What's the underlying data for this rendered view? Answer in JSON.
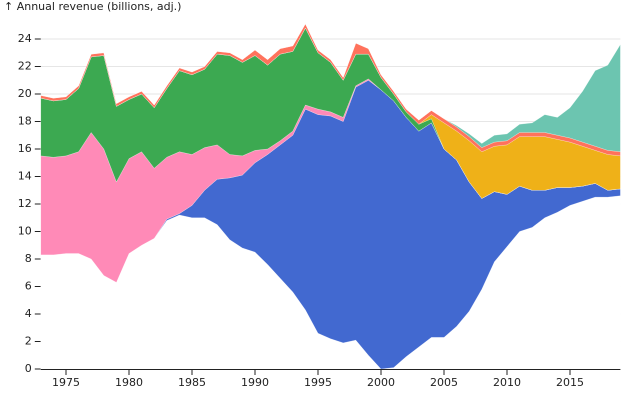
{
  "chart_data": {
    "type": "stacked-area",
    "y_label": "↑ Annual revenue (billions, adj.)",
    "x": [
      1973,
      1974,
      1975,
      1976,
      1977,
      1978,
      1979,
      1980,
      1981,
      1982,
      1983,
      1984,
      1985,
      1986,
      1987,
      1988,
      1989,
      1990,
      1991,
      1992,
      1993,
      1994,
      1995,
      1996,
      1997,
      1998,
      1999,
      2000,
      2001,
      2002,
      2003,
      2004,
      2005,
      2006,
      2007,
      2008,
      2009,
      2010,
      2011,
      2012,
      2013,
      2014,
      2015,
      2016,
      2017,
      2018,
      2019
    ],
    "series": [
      {
        "color": "#ffffff",
        "values": [
          8.3,
          8.3,
          8.4,
          8.4,
          8.0,
          6.8,
          6.3,
          8.4,
          9.0,
          9.5,
          10.8,
          11.2,
          11.0,
          11.0,
          10.5,
          9.4,
          8.8,
          8.5,
          7.6,
          6.6,
          5.6,
          4.3,
          2.6,
          2.2,
          1.9,
          2.1,
          1.0,
          0.0,
          0.1,
          0.9,
          1.6,
          2.3,
          2.3,
          3.1,
          4.2,
          5.8,
          7.8,
          8.9,
          10.0,
          10.3,
          11.0,
          11.4,
          11.9,
          12.2,
          12.5,
          12.5,
          12.6
        ]
      },
      {
        "color": "#4269d0",
        "values": [
          0,
          0,
          0,
          0,
          0,
          0,
          0,
          0,
          0,
          0,
          0.1,
          0.1,
          0.9,
          2.0,
          3.3,
          4.5,
          5.3,
          6.5,
          8.0,
          9.7,
          11.4,
          14.6,
          15.9,
          16.2,
          16.1,
          18.4,
          20.0,
          20.3,
          19.4,
          17.4,
          15.7,
          15.6,
          13.7,
          12.1,
          9.4,
          6.6,
          5.1,
          3.8,
          3.3,
          2.7,
          2.0,
          1.8,
          1.3,
          1.1,
          1.0,
          0.5,
          0.5
        ]
      },
      {
        "color": "#ff8ab7",
        "values": [
          7.2,
          7.1,
          7.1,
          7.4,
          9.2,
          9.2,
          7.3,
          6.9,
          6.8,
          5.1,
          4.5,
          4.5,
          3.7,
          3.1,
          2.5,
          1.7,
          1.4,
          0.9,
          0.4,
          0.3,
          0.3,
          0.3,
          0.4,
          0.3,
          0.3,
          0.1,
          0.1,
          0,
          0,
          0,
          0,
          0,
          0,
          0,
          0,
          0,
          0,
          0,
          0,
          0,
          0,
          0,
          0,
          0,
          0,
          0,
          0
        ]
      },
      {
        "color": "#3ca951",
        "values": [
          4.2,
          4.1,
          4.1,
          4.6,
          5.5,
          6.8,
          5.5,
          4.3,
          4.2,
          4.4,
          5.0,
          5.9,
          5.8,
          5.7,
          6.6,
          7.2,
          6.8,
          6.9,
          6.1,
          6.3,
          5.8,
          5.6,
          4.1,
          3.6,
          2.7,
          2.3,
          1.8,
          0.9,
          0.5,
          0.4,
          0.5,
          0.3,
          0,
          0,
          0,
          0,
          0,
          0,
          0,
          0,
          0,
          0,
          0,
          0,
          0,
          0,
          0
        ]
      },
      {
        "color": "#efb118",
        "values": [
          0,
          0,
          0,
          0,
          0,
          0,
          0,
          0,
          0,
          0,
          0,
          0,
          0,
          0,
          0,
          0,
          0,
          0,
          0,
          0,
          0,
          0,
          0,
          0,
          0,
          0,
          0,
          0,
          0,
          0,
          0,
          0.3,
          1.9,
          2.1,
          3.0,
          3.4,
          3.3,
          3.6,
          3.6,
          3.9,
          3.9,
          3.5,
          3.3,
          2.9,
          2.4,
          2.6,
          2.4
        ]
      },
      {
        "color": "#ff725c",
        "values": [
          0.2,
          0.2,
          0.2,
          0.2,
          0.2,
          0.2,
          0.2,
          0.2,
          0.2,
          0.2,
          0.2,
          0.2,
          0.2,
          0.2,
          0.2,
          0.2,
          0.2,
          0.4,
          0.4,
          0.4,
          0.4,
          0.3,
          0.2,
          0.2,
          0.2,
          0.8,
          0.4,
          0.2,
          0.2,
          0.2,
          0.3,
          0.3,
          0.3,
          0.3,
          0.3,
          0.3,
          0.3,
          0.3,
          0.3,
          0.3,
          0.3,
          0.3,
          0.3,
          0.3,
          0.3,
          0.3,
          0.3
        ]
      },
      {
        "color": "#6cc5b0",
        "values": [
          0,
          0,
          0,
          0,
          0,
          0,
          0,
          0,
          0,
          0,
          0,
          0,
          0,
          0,
          0,
          0,
          0,
          0,
          0,
          0,
          0,
          0,
          0,
          0,
          0,
          0,
          0,
          0,
          0,
          0,
          0,
          0,
          0,
          0.1,
          0.2,
          0.3,
          0.5,
          0.5,
          0.6,
          0.7,
          1.3,
          1.3,
          2.2,
          3.7,
          5.5,
          6.2,
          7.8
        ]
      }
    ],
    "xlim": [
      1973,
      2019
    ],
    "xticks": [
      1975,
      1980,
      1985,
      1990,
      1995,
      2000,
      2005,
      2010,
      2015
    ],
    "ylim": [
      0,
      25
    ],
    "yticks": [
      0,
      2,
      4,
      6,
      8,
      10,
      12,
      14,
      16,
      18,
      20,
      22,
      24
    ],
    "grid": true
  }
}
